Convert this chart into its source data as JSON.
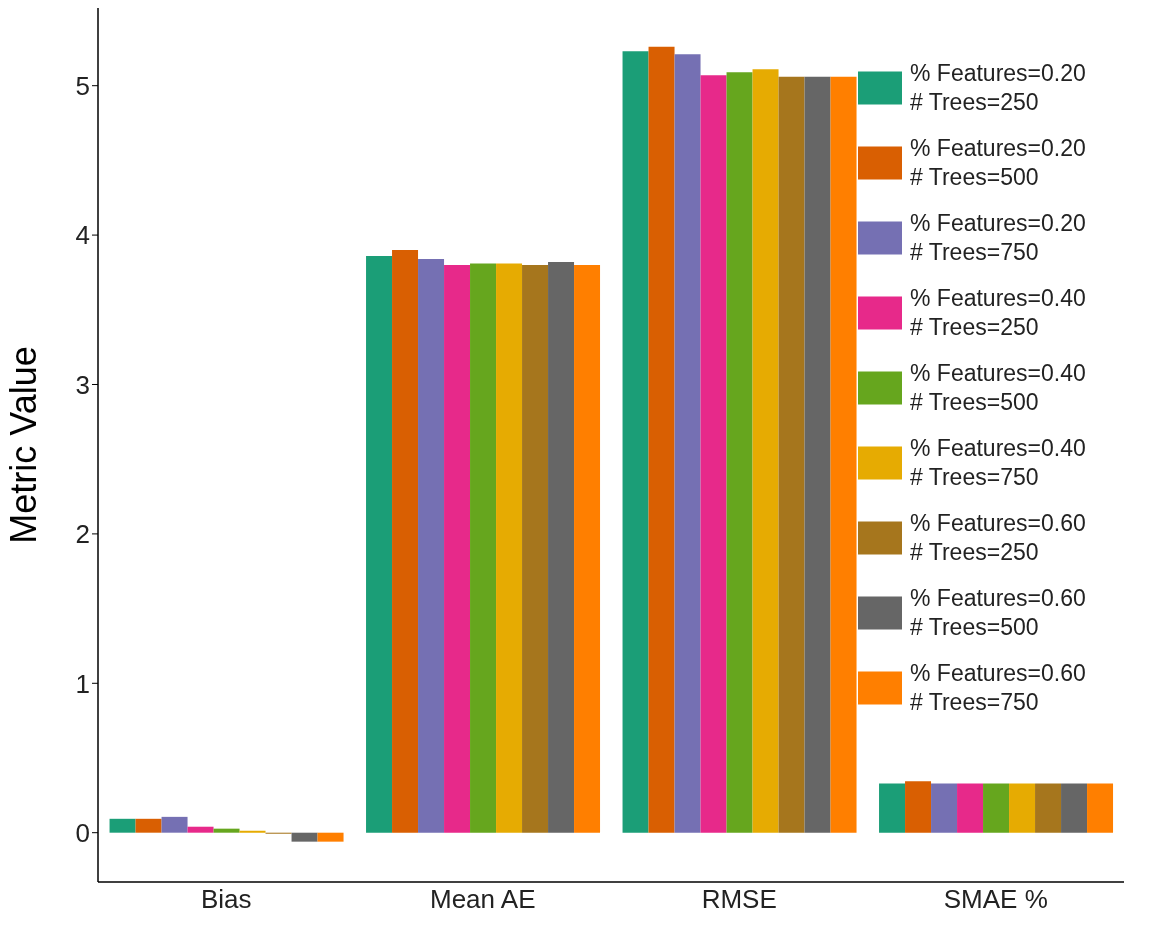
{
  "chart_data": {
    "type": "bar",
    "ylabel": "Metric Value",
    "categories": [
      "Bias",
      "Mean AE",
      "RMSE",
      "SMAE %"
    ],
    "ylim": [
      -0.33,
      5.52
    ],
    "yticks": [
      0,
      1,
      2,
      3,
      4,
      5
    ],
    "grid": false,
    "legend": "right",
    "series": [
      {
        "name": "% Features=0.20\n# Trees=250",
        "color": "#1b9e77",
        "values": [
          0.093,
          3.86,
          5.23,
          0.33
        ]
      },
      {
        "name": "% Features=0.20\n# Trees=500",
        "color": "#d95f02",
        "values": [
          0.093,
          3.9,
          5.26,
          0.345
        ]
      },
      {
        "name": "% Features=0.20\n# Trees=750",
        "color": "#7570b3",
        "values": [
          0.106,
          3.84,
          5.21,
          0.33
        ]
      },
      {
        "name": "% Features=0.40\n# Trees=250",
        "color": "#e7298a",
        "values": [
          0.04,
          3.8,
          5.07,
          0.33
        ]
      },
      {
        "name": "% Features=0.40\n# Trees=500",
        "color": "#66a61e",
        "values": [
          0.027,
          3.81,
          5.09,
          0.33
        ]
      },
      {
        "name": "% Features=0.40\n# Trees=750",
        "color": "#e6ab02",
        "values": [
          0.013,
          3.81,
          5.11,
          0.33
        ]
      },
      {
        "name": "% Features=0.60\n# Trees=250",
        "color": "#a6761d",
        "values": [
          -0.007,
          3.8,
          5.06,
          0.33
        ]
      },
      {
        "name": "% Features=0.60\n# Trees=500",
        "color": "#666666",
        "values": [
          -0.06,
          3.82,
          5.06,
          0.33
        ]
      },
      {
        "name": "% Features=0.60\n# Trees=750",
        "color": "#ff7f00",
        "values": [
          -0.06,
          3.8,
          5.06,
          0.33
        ]
      }
    ]
  }
}
